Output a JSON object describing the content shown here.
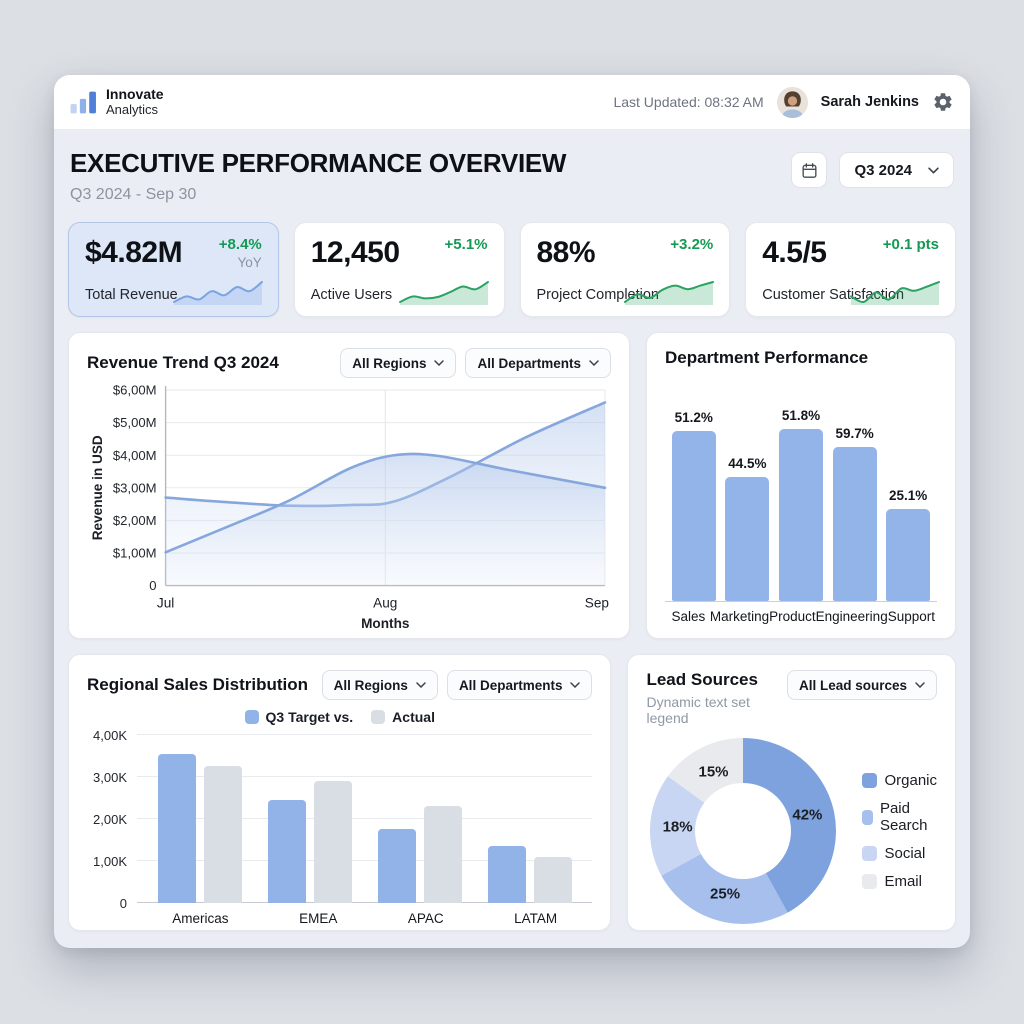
{
  "header": {
    "brand_line1": "Innovate",
    "brand_line2": "Analytics",
    "last_updated": "Last Updated: 08:32 AM",
    "user_name": "Sarah Jenkins"
  },
  "title_section": {
    "heading": "EXECUTIVE PERFORMANCE OVERVIEW",
    "subtitle": "Q3 2024 - Sep 30",
    "period_selector": "Q3 2024"
  },
  "kpis": [
    {
      "value": "$4.82M",
      "label": "Total Revenue",
      "delta": "+8.4%",
      "delta_suffix": "YoY",
      "highlighted": true,
      "spark_color": "#7ba3e2",
      "spark": [
        2.5,
        3.6,
        3.0,
        4.6,
        3.8,
        5.4,
        4.6,
        6.4
      ]
    },
    {
      "value": "12,450",
      "label": "Active Users",
      "delta": "+5.1%",
      "delta_suffix": "",
      "highlighted": false,
      "spark_color": "#2aa262",
      "spark": [
        2.2,
        3.4,
        3.0,
        3.3,
        4.4,
        5.6,
        5.0,
        6.6
      ]
    },
    {
      "value": "88%",
      "label": "Project Completion",
      "delta": "+3.2%",
      "delta_suffix": "",
      "highlighted": false,
      "spark_color": "#2aa262",
      "spark": [
        2.4,
        3.9,
        3.2,
        4.8,
        5.6,
        4.9,
        5.6,
        6.3
      ]
    },
    {
      "value": "4.5/5",
      "label": "Customer Satisfaction",
      "delta": "+0.1 pts",
      "delta_suffix": "",
      "highlighted": false,
      "spark_color": "#2aa262",
      "spark": [
        3.4,
        2.7,
        3.9,
        3.0,
        4.4,
        4.1,
        4.6,
        5.2
      ]
    }
  ],
  "panels": {
    "revenue": {
      "title": "Revenue Trend Q3 2024",
      "filters": [
        "All Regions",
        "All Departments"
      ]
    },
    "departments": {
      "title": "Department Performance"
    },
    "regional": {
      "title": "Regional Sales Distribution",
      "filters": [
        "All Regions",
        "All Departments"
      ]
    },
    "leads": {
      "title": "Lead Sources",
      "subtitle": "Dynamic text set legend",
      "filter": "All Lead sources"
    }
  },
  "chart_data": [
    {
      "id": "revenue_trend",
      "type": "area",
      "title": "Revenue Trend Q3 2024",
      "xlabel": "Months",
      "ylabel": "Revenue in USD",
      "xticks": [
        "Jul",
        "Aug",
        "Sep"
      ],
      "yticks": [
        {
          "label": "$6,00M",
          "value": 6
        },
        {
          "label": "$5,00M",
          "value": 5
        },
        {
          "label": "$4,00M",
          "value": 4
        },
        {
          "label": "$3,00M",
          "value": 3
        },
        {
          "label": "$2,00M",
          "value": 2
        },
        {
          "label": "$1,00M",
          "value": 1
        },
        {
          "label": "0",
          "value": 0
        }
      ],
      "ylim": [
        0,
        6
      ],
      "grid": true,
      "line_color": "#86a7dc",
      "series": [
        {
          "name": "series_1",
          "points": [
            [
              0,
              2.7
            ],
            [
              12,
              2.58
            ],
            [
              28,
              2.45
            ],
            [
              42,
              2.47
            ],
            [
              52,
              2.58
            ],
            [
              65,
              3.35
            ],
            [
              82,
              4.55
            ],
            [
              100,
              5.62
            ]
          ]
        },
        {
          "name": "series_2",
          "points": [
            [
              0,
              1.02
            ],
            [
              14,
              1.8
            ],
            [
              28,
              2.6
            ],
            [
              42,
              3.6
            ],
            [
              52,
              4.0
            ],
            [
              62,
              3.98
            ],
            [
              78,
              3.55
            ],
            [
              100,
              3.0
            ]
          ]
        }
      ]
    },
    {
      "id": "department_performance",
      "type": "bar",
      "title": "Department Performance",
      "categories": [
        "Sales",
        "Marketing",
        "Product",
        "Engineering",
        "Support"
      ],
      "value_labels": [
        "51.2%",
        "44.5%",
        "51.8%",
        "59.7%",
        "25.1%"
      ],
      "values": [
        51.2,
        44.5,
        51.8,
        59.7,
        25.1
      ],
      "bar_heights_pct": [
        85,
        62,
        86,
        77,
        46
      ],
      "bar_color": "#93b4e9"
    },
    {
      "id": "regional_sales",
      "type": "grouped_bar",
      "title": "Regional Sales Distribution",
      "categories": [
        "Americas",
        "EMEA",
        "APAC",
        "LATAM"
      ],
      "legend": [
        {
          "label": "Q3 Target vs.",
          "color": "#92b3e8"
        },
        {
          "label": "Actual",
          "color": "#d9dde4"
        }
      ],
      "yticks": [
        {
          "label": "4,00K",
          "value": 4
        },
        {
          "label": "3,00K",
          "value": 3
        },
        {
          "label": "2,00K",
          "value": 2
        },
        {
          "label": "1,00K",
          "value": 1
        },
        {
          "label": "0",
          "value": 0
        }
      ],
      "ylim": [
        0,
        4
      ],
      "grid": true,
      "series": [
        {
          "name": "Q3 Target",
          "color": "#92b3e8",
          "values": [
            3.55,
            2.45,
            1.75,
            1.35
          ]
        },
        {
          "name": "Actual",
          "color": "#d9dde4",
          "values": [
            3.25,
            2.9,
            2.3,
            1.1
          ]
        }
      ]
    },
    {
      "id": "lead_sources",
      "type": "donut",
      "title": "Lead Sources",
      "legend_position": "right",
      "slices": [
        {
          "label": "Organic",
          "value": 42,
          "pct_label": "42%",
          "color": "#7da2de"
        },
        {
          "label": "Paid Search",
          "value": 25,
          "pct_label": "25%",
          "color": "#a6bfec"
        },
        {
          "label": "Social",
          "value": 18,
          "pct_label": "18%",
          "color": "#c8d6f3"
        },
        {
          "label": "Email",
          "value": 15,
          "pct_label": "15%",
          "color": "#e8eaee"
        }
      ]
    }
  ]
}
